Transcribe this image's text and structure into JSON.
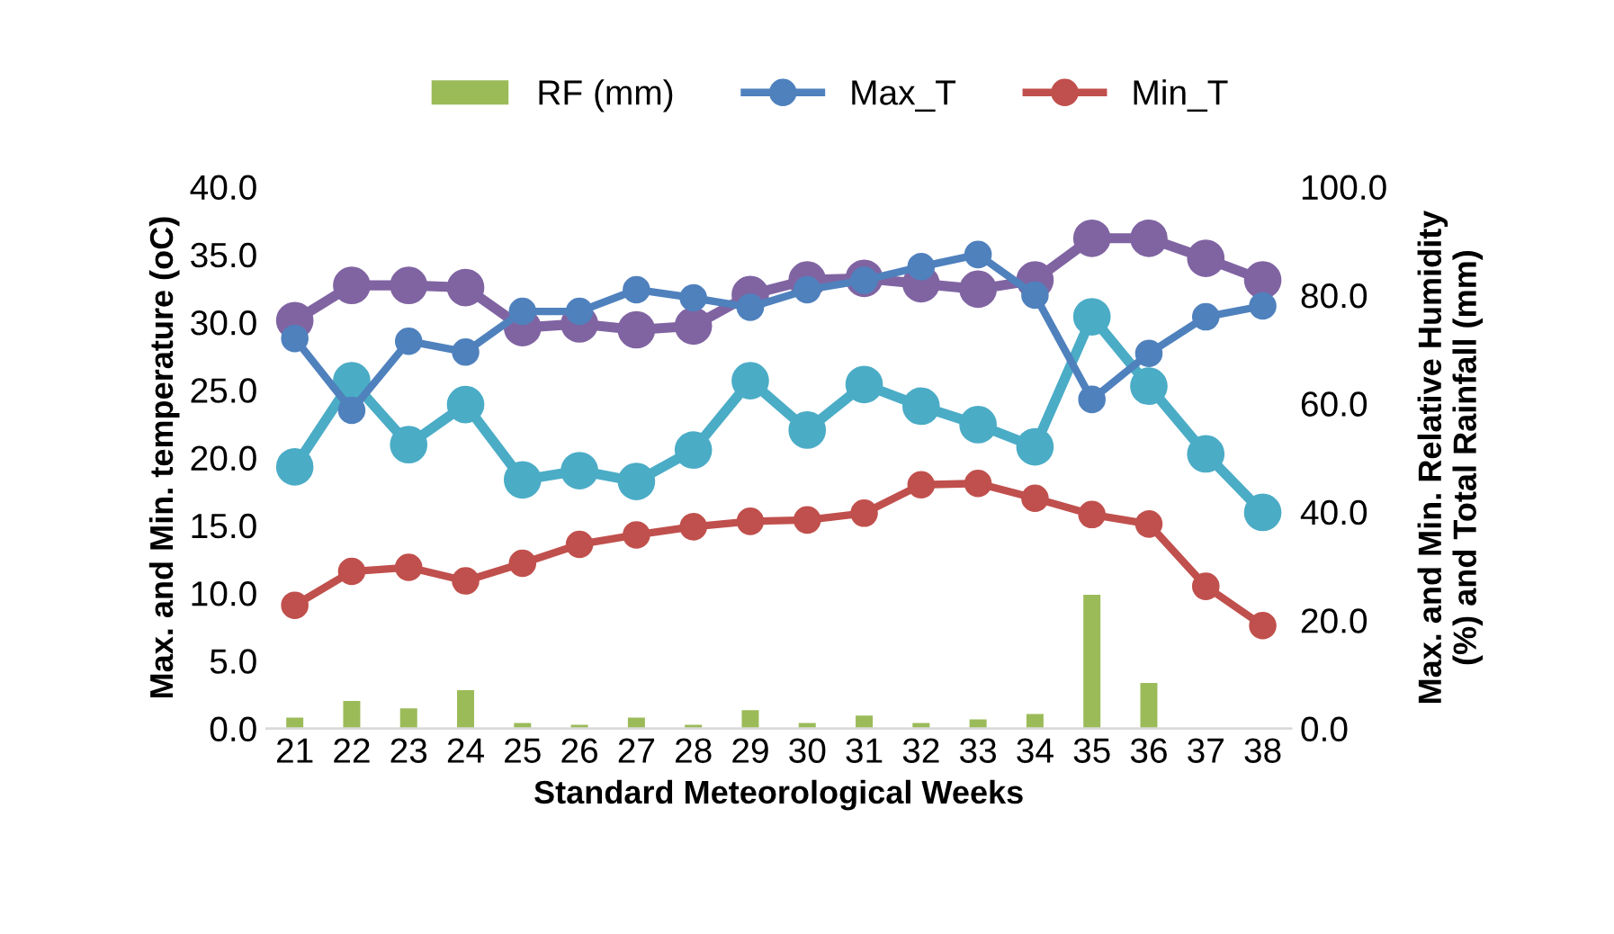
{
  "chart_data": {
    "type": "line",
    "xlabel": "Standard Meteorological Weeks",
    "ylabel": "Max. and Min. temperature (oC)",
    "y2label": "Max. and Min. Relative Humidity\n(%) and Total Rainfall (mm)",
    "categories": [
      "21",
      "22",
      "23",
      "24",
      "25",
      "26",
      "27",
      "28",
      "29",
      "30",
      "31",
      "32",
      "33",
      "34",
      "35",
      "36",
      "37",
      "38"
    ],
    "ylim": [
      0,
      40
    ],
    "yticks": [
      {
        "value": 0,
        "label": "0.0"
      },
      {
        "value": 5,
        "label": "5.0"
      },
      {
        "value": 10,
        "label": "10.0"
      },
      {
        "value": 15,
        "label": "15.0"
      },
      {
        "value": 20,
        "label": "20.0"
      },
      {
        "value": 25,
        "label": "25.0"
      },
      {
        "value": 30,
        "label": "30.0"
      },
      {
        "value": 35,
        "label": "35.0"
      },
      {
        "value": 40,
        "label": "40.0"
      }
    ],
    "y2lim": [
      0,
      100
    ],
    "y2ticks": [
      {
        "value": 0,
        "label": "0.0"
      },
      {
        "value": 20,
        "label": "20.0"
      },
      {
        "value": 40,
        "label": "40.0"
      },
      {
        "value": 60,
        "label": "60.0"
      },
      {
        "value": 80,
        "label": "80.0"
      },
      {
        "value": 100,
        "label": "100.0"
      }
    ],
    "marker": "circle",
    "grid": false,
    "legend": "top",
    "series": [
      {
        "name": "RF (mm)",
        "type": "bar",
        "axis": "y2",
        "color": "#9bbb59",
        "values": [
          2.0,
          5.1,
          3.7,
          7.1,
          1.0,
          0.7,
          2.0,
          0.7,
          3.4,
          1.0,
          2.4,
          1.0,
          1.7,
          2.7,
          24.7,
          8.4,
          0,
          0
        ]
      },
      {
        "name": "Max_T",
        "color": "#4f81bd",
        "values": [
          28.8,
          23.5,
          28.6,
          27.8,
          30.8,
          30.8,
          32.4,
          31.8,
          31.1,
          32.4,
          33.1,
          34.1,
          35.0,
          32.0,
          24.3,
          27.7,
          30.4,
          31.2
        ]
      },
      {
        "name": "Min_T",
        "color": "#c0504d",
        "values": [
          9.1,
          11.6,
          11.9,
          10.9,
          12.2,
          13.6,
          14.3,
          14.9,
          15.3,
          15.4,
          15.9,
          18.0,
          18.1,
          17.0,
          15.8,
          15.1,
          10.5,
          7.6
        ]
      },
      {
        "axis": "y2",
        "color": "#8064a2",
        "values": [
          75.3,
          81.8,
          81.8,
          81.4,
          74.0,
          74.7,
          73.6,
          74.3,
          80.1,
          82.8,
          83.1,
          82.1,
          81.1,
          82.8,
          90.5,
          90.5,
          86.8,
          82.8
        ]
      },
      {
        "axis": "y2",
        "color": "#4bacc6",
        "values": [
          48.3,
          64.2,
          52.4,
          59.8,
          45.9,
          47.6,
          45.6,
          51.4,
          64.2,
          55.1,
          63.5,
          59.5,
          56.1,
          52.0,
          76.0,
          63.2,
          50.7,
          39.9
        ]
      }
    ]
  }
}
